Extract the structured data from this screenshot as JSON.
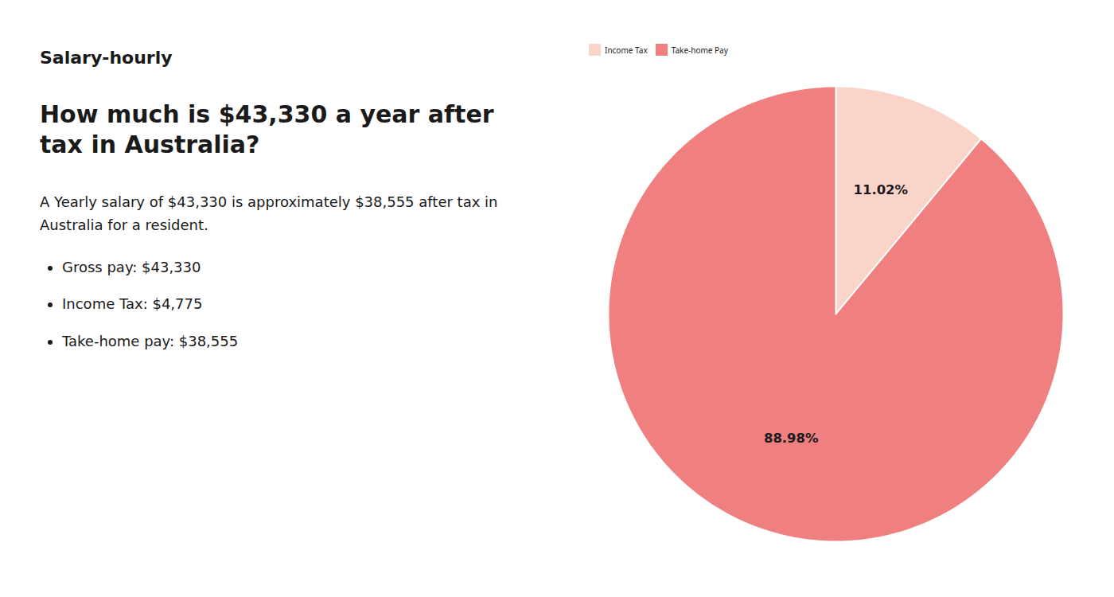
{
  "chart_data": {
    "type": "pie",
    "title": "How much is $43,330 a year after tax in Australia?",
    "annotations": [
      "Salary-hourly",
      "A Yearly salary of $43,330 is approximately $38,555 after tax in Australia for a resident.",
      "Gross pay: $43,330",
      "Income Tax: $4,775",
      "Take-home pay: $38,555"
    ],
    "categories": [
      "Income Tax",
      "Take-home Pay"
    ],
    "values": [
      11.02,
      88.98
    ],
    "value_labels": [
      "11.02%",
      "88.98%"
    ],
    "colors": [
      "#fad4c8",
      "#f08080"
    ],
    "data_labels": true,
    "legend": "top"
  }
}
